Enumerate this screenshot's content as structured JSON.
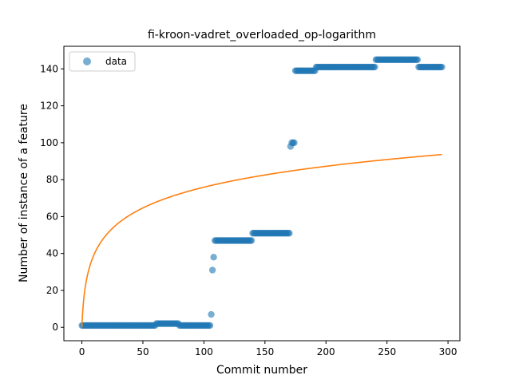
{
  "chart_data": {
    "type": "scatter",
    "title": "fi-kroon-vadret_overloaded_op-logarithm",
    "xlabel": "Commit number",
    "ylabel": "Number of instance of a feature",
    "xlim": [
      -14.75,
      309.75
    ],
    "ylim": [
      -7.25,
      152.25
    ],
    "xticks": [
      0,
      50,
      100,
      150,
      200,
      250,
      300
    ],
    "yticks": [
      0,
      20,
      40,
      60,
      80,
      100,
      120,
      140
    ],
    "grid": false,
    "legend": {
      "placement": "top-left",
      "entries": [
        "data"
      ]
    },
    "colors": {
      "data": "#1f77b4",
      "fit": "#ff7f0e"
    },
    "series": [
      {
        "name": "data",
        "kind": "points",
        "segments": [
          {
            "x_start": 0,
            "x_end": 60,
            "y": 1
          },
          {
            "x_start": 61,
            "x_end": 79,
            "y": 2
          },
          {
            "x_start": 80,
            "x_end": 105,
            "y": 1
          }
        ],
        "points": [
          [
            106,
            7
          ],
          [
            107,
            31
          ],
          [
            108,
            38
          ]
        ],
        "segments_after": [
          {
            "x_start": 109,
            "x_end": 139,
            "y": 47
          },
          {
            "x_start": 140,
            "x_end": 170,
            "y": 51
          }
        ],
        "points_after": [
          [
            171,
            98
          ],
          [
            172,
            100
          ],
          [
            173,
            100
          ],
          [
            174,
            100
          ]
        ],
        "segments_tail": [
          {
            "x_start": 175,
            "x_end": 191,
            "y": 139
          },
          {
            "x_start": 192,
            "x_end": 240,
            "y": 141
          },
          {
            "x_start": 241,
            "x_end": 275,
            "y": 145
          },
          {
            "x_start": 276,
            "x_end": 295,
            "y": 141
          }
        ]
      },
      {
        "kind": "line",
        "model": "a + b*ln(x+1)",
        "a": 0,
        "b": 16.45,
        "x_range": [
          0,
          295
        ]
      }
    ]
  }
}
